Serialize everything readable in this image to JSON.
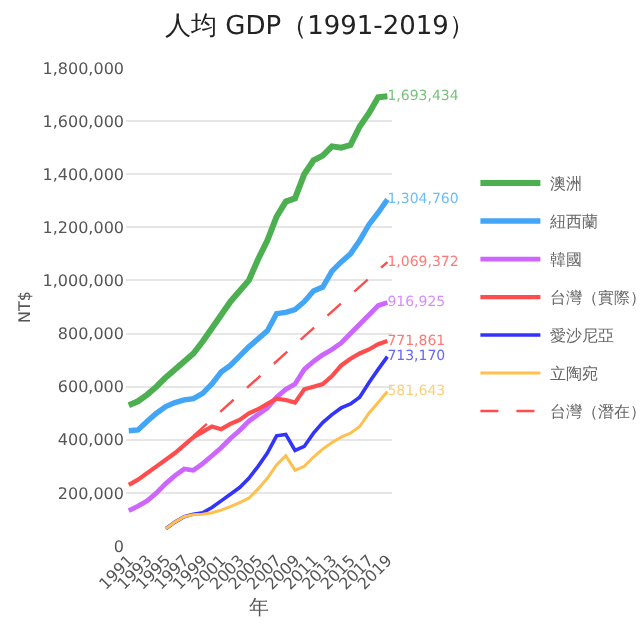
{
  "chart_data": {
    "type": "line",
    "title": "人均 GDP（1991-2019）",
    "xlabel": "年",
    "ylabel": "NT$",
    "x": [
      1991,
      1992,
      1993,
      1994,
      1995,
      1996,
      1997,
      1998,
      1999,
      2000,
      2001,
      2002,
      2003,
      2004,
      2005,
      2006,
      2007,
      2008,
      2009,
      2010,
      2011,
      2012,
      2013,
      2014,
      2015,
      2016,
      2017,
      2018,
      2019
    ],
    "xlim": [
      1990.7,
      2019.5
    ],
    "xticks": [
      1991,
      1993,
      1995,
      1997,
      1999,
      2001,
      2003,
      2005,
      2007,
      2009,
      2011,
      2013,
      2015,
      2017,
      2019
    ],
    "ylim": [
      0,
      1800000
    ],
    "yticks": [
      {
        "value": 0,
        "label": "0"
      },
      {
        "value": 200000,
        "label": "200,000"
      },
      {
        "value": 400000,
        "label": "400,000"
      },
      {
        "value": 600000,
        "label": "600,000"
      },
      {
        "value": 800000,
        "label": "800,000"
      },
      {
        "value": 1000000,
        "label": "1,000,000"
      },
      {
        "value": 1200000,
        "label": "1,200,000"
      },
      {
        "value": 1400000,
        "label": "1,400,000"
      },
      {
        "value": 1600000,
        "label": "1,600,000"
      },
      {
        "value": 1800000,
        "label": "1,800,000"
      }
    ],
    "grid": "y",
    "legend": "right",
    "marker": "none",
    "line_style": "solid",
    "series": [
      {
        "name": "澳洲",
        "color": "#4caf50",
        "values": [
          530000,
          545000,
          570000,
          600000,
          635000,
          665000,
          695000,
          725000,
          770000,
          820000,
          870000,
          920000,
          960000,
          1000000,
          1080000,
          1150000,
          1240000,
          1297000,
          1309000,
          1400000,
          1452000,
          1470000,
          1505000,
          1500000,
          1510000,
          1580000,
          1630000,
          1690000,
          1693434
        ],
        "value_labels": [
          null,
          null,
          null,
          null,
          null,
          null,
          null,
          null,
          null,
          null,
          null,
          null,
          null,
          null,
          null,
          null,
          null,
          null,
          null,
          null,
          null,
          null,
          null,
          null,
          null,
          null,
          null,
          null,
          "1,693,434"
        ]
      },
      {
        "name": "紐西蘭",
        "color": "#42a5f5",
        "values": [
          434000,
          437000,
          470000,
          500000,
          525000,
          540000,
          550000,
          555000,
          575000,
          610000,
          655000,
          680000,
          715000,
          750000,
          780000,
          810000,
          875000,
          880000,
          890000,
          920000,
          960000,
          975000,
          1035000,
          1070000,
          1100000,
          1150000,
          1210000,
          1255000,
          1304760
        ],
        "value_labels": [
          null,
          null,
          null,
          null,
          null,
          null,
          null,
          null,
          null,
          null,
          null,
          null,
          null,
          null,
          null,
          null,
          null,
          null,
          null,
          null,
          null,
          null,
          null,
          null,
          null,
          null,
          null,
          null,
          "1,304,760"
        ]
      },
      {
        "name": "韓國",
        "color": "#cc66ff",
        "values": [
          133000,
          150000,
          170000,
          200000,
          235000,
          265000,
          290000,
          285000,
          310000,
          340000,
          370000,
          405000,
          435000,
          470000,
          495000,
          520000,
          560000,
          590000,
          610000,
          665000,
          695000,
          720000,
          740000,
          765000,
          800000,
          835000,
          870000,
          905000,
          916925
        ],
        "value_labels": [
          null,
          null,
          null,
          null,
          null,
          null,
          null,
          null,
          null,
          null,
          null,
          null,
          null,
          null,
          null,
          null,
          null,
          null,
          null,
          null,
          null,
          null,
          null,
          null,
          null,
          null,
          null,
          null,
          "916,925"
        ]
      },
      {
        "name": "台灣（實際）",
        "color": "#ff4d4d",
        "values": [
          230000,
          250000,
          275000,
          300000,
          325000,
          350000,
          380000,
          410000,
          430000,
          450000,
          440000,
          460000,
          475000,
          500000,
          515000,
          535000,
          555000,
          550000,
          540000,
          590000,
          600000,
          610000,
          640000,
          680000,
          705000,
          725000,
          740000,
          760000,
          771861
        ],
        "value_labels": [
          null,
          null,
          null,
          null,
          null,
          null,
          null,
          null,
          null,
          null,
          null,
          null,
          null,
          null,
          null,
          null,
          null,
          null,
          null,
          null,
          null,
          null,
          null,
          null,
          null,
          null,
          null,
          null,
          "771,861"
        ]
      },
      {
        "name": "愛沙尼亞",
        "color": "#3333ff",
        "values": [
          null,
          null,
          null,
          null,
          65000,
          90000,
          110000,
          120000,
          125000,
          145000,
          170000,
          195000,
          220000,
          255000,
          300000,
          350000,
          415000,
          420000,
          360000,
          375000,
          425000,
          465000,
          495000,
          520000,
          535000,
          560000,
          615000,
          665000,
          713170
        ],
        "value_labels": [
          null,
          null,
          null,
          null,
          null,
          null,
          null,
          null,
          null,
          null,
          null,
          null,
          null,
          null,
          null,
          null,
          null,
          null,
          null,
          null,
          null,
          null,
          null,
          null,
          null,
          null,
          null,
          null,
          "713,170"
        ]
      },
      {
        "name": "立陶宛",
        "color": "#ffc04d",
        "values": [
          null,
          null,
          null,
          null,
          65000,
          90000,
          110000,
          118000,
          120000,
          125000,
          135000,
          148000,
          163000,
          180000,
          215000,
          255000,
          305000,
          340000,
          285000,
          300000,
          335000,
          365000,
          390000,
          410000,
          425000,
          450000,
          500000,
          540000,
          581643
        ],
        "value_labels": [
          null,
          null,
          null,
          null,
          null,
          null,
          null,
          null,
          null,
          null,
          null,
          null,
          null,
          null,
          null,
          null,
          null,
          null,
          null,
          null,
          null,
          null,
          null,
          null,
          null,
          null,
          null,
          null,
          "581,643"
        ]
      },
      {
        "name": "台灣（潛在）",
        "color": "#ff4d4d",
        "line_style": "dashed",
        "x": [
          1998,
          2019
        ],
        "values": [
          415000,
          1069372
        ],
        "value_labels": [
          null,
          "1,069,372"
        ]
      }
    ]
  }
}
